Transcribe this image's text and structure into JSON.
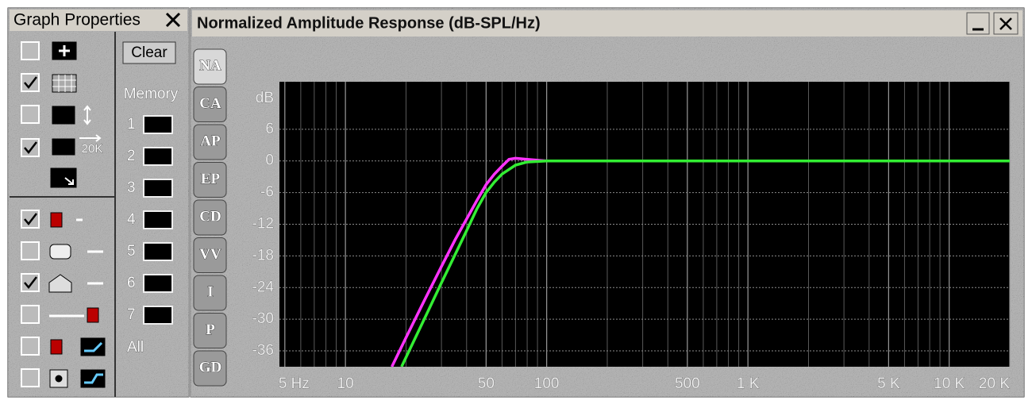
{
  "graph_properties": {
    "title": "Graph Properties",
    "checkboxes": [
      {
        "checked": false
      },
      {
        "checked": true
      },
      {
        "checked": false
      },
      {
        "checked": true
      },
      {
        "checked": true
      },
      {
        "checked": false
      },
      {
        "checked": true
      },
      {
        "checked": false
      },
      {
        "checked": false
      },
      {
        "checked": false
      }
    ],
    "icon_text": "20K",
    "clear": "Clear",
    "memory": "Memory",
    "memory_slots": [
      "1",
      "2",
      "3",
      "4",
      "5",
      "6",
      "7"
    ],
    "all": "All"
  },
  "window": {
    "title": "Normalized Amplitude Response (dB-SPL/Hz)",
    "tabs": [
      "NA",
      "CA",
      "AP",
      "EP",
      "CD",
      "VV",
      "I",
      "P",
      "GD"
    ]
  },
  "chart_data": {
    "type": "line",
    "ylabel": "dB",
    "xscale": "log",
    "grid": true,
    "xlim": [
      4.7,
      20000
    ],
    "ylim": [
      -39,
      15
    ],
    "xticks": [
      {
        "value": 5,
        "label": "5 Hz"
      },
      10,
      50,
      100,
      500,
      {
        "value": 1000,
        "label": "1 K"
      },
      {
        "value": 5000,
        "label": "5 K"
      },
      {
        "value": 10000,
        "label": "10 K"
      },
      {
        "value": 20000,
        "label": "20 K"
      }
    ],
    "xminor_grid": [
      6,
      7,
      8,
      9,
      20,
      30,
      40,
      60,
      70,
      80,
      90,
      200,
      300,
      400,
      600,
      700,
      800,
      900,
      2000,
      3000,
      4000,
      6000,
      7000,
      8000,
      9000
    ],
    "yticks": [
      6,
      0,
      -6,
      -12,
      -18,
      -24,
      -30,
      -36
    ],
    "series": [
      {
        "color": "#ff33ff",
        "x": [
          17,
          20,
          25,
          30,
          35,
          40,
          45,
          50,
          55,
          60,
          65,
          70,
          80,
          100,
          300,
          1000,
          20000
        ],
        "values": [
          -39,
          -33.5,
          -26,
          -20,
          -15,
          -11,
          -7.5,
          -4.5,
          -2.5,
          -1,
          0.3,
          0.5,
          0.3,
          0,
          0,
          0,
          0
        ]
      },
      {
        "color": "#33ee33",
        "x": [
          19,
          25,
          30,
          35,
          40,
          45,
          50,
          55,
          60,
          70,
          80,
          100,
          300,
          1000,
          20000
        ],
        "values": [
          -39,
          -29.5,
          -23.1,
          -17.8,
          -13.2,
          -9.1,
          -6,
          -4,
          -2.5,
          -0.8,
          -0.2,
          0,
          0,
          0,
          0
        ]
      }
    ]
  }
}
